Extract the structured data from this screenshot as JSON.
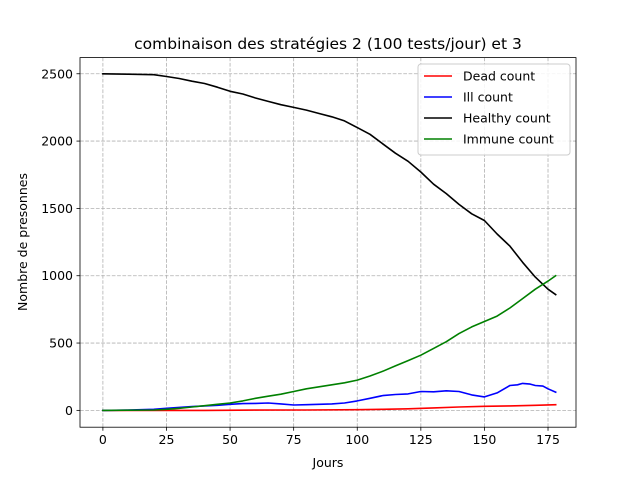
{
  "chart_data": {
    "type": "line",
    "title": "combinaison des stratégies 2 (100 tests/jour) et 3",
    "xlabel": "Jours",
    "ylabel": "Nombre de presonnes",
    "xlim": [
      -9,
      186
    ],
    "ylim": [
      -125,
      2620
    ],
    "xticks": [
      0,
      25,
      50,
      75,
      100,
      125,
      150,
      175
    ],
    "yticks": [
      0,
      500,
      1000,
      1500,
      2000,
      2500
    ],
    "xtick_labels": [
      "0",
      "25",
      "50",
      "75",
      "100",
      "125",
      "150",
      "175"
    ],
    "ytick_labels": [
      "0",
      "500",
      "1000",
      "1500",
      "2000",
      "2500"
    ],
    "grid": true,
    "legend_position": "top-right",
    "series": [
      {
        "name": "Dead count",
        "color": "#ff0000",
        "x": [
          0,
          20,
          40,
          60,
          80,
          100,
          110,
          120,
          130,
          140,
          150,
          160,
          170,
          178
        ],
        "y": [
          0,
          0,
          0,
          2,
          3,
          5,
          8,
          12,
          18,
          25,
          30,
          33,
          38,
          42
        ]
      },
      {
        "name": "Ill count",
        "color": "#0000ff",
        "x": [
          0,
          10,
          20,
          25,
          30,
          35,
          40,
          45,
          50,
          55,
          60,
          65,
          70,
          75,
          80,
          85,
          90,
          95,
          100,
          105,
          110,
          115,
          120,
          125,
          130,
          135,
          140,
          145,
          150,
          155,
          160,
          163,
          165,
          168,
          170,
          173,
          175,
          178
        ],
        "y": [
          0,
          2,
          8,
          15,
          22,
          28,
          33,
          38,
          45,
          50,
          52,
          55,
          48,
          40,
          42,
          45,
          48,
          55,
          70,
          90,
          110,
          118,
          122,
          140,
          138,
          145,
          140,
          115,
          100,
          130,
          185,
          190,
          200,
          195,
          185,
          180,
          160,
          135
        ]
      },
      {
        "name": "Healthy count",
        "color": "#000000",
        "x": [
          0,
          10,
          20,
          25,
          30,
          35,
          40,
          45,
          50,
          55,
          60,
          65,
          70,
          75,
          80,
          85,
          90,
          95,
          100,
          105,
          110,
          115,
          120,
          125,
          130,
          135,
          140,
          145,
          150,
          155,
          160,
          165,
          170,
          175,
          178
        ],
        "y": [
          2500,
          2497,
          2493,
          2480,
          2465,
          2445,
          2428,
          2400,
          2370,
          2350,
          2320,
          2295,
          2270,
          2250,
          2230,
          2205,
          2180,
          2150,
          2100,
          2050,
          1980,
          1910,
          1850,
          1770,
          1680,
          1610,
          1530,
          1460,
          1410,
          1310,
          1220,
          1100,
          990,
          900,
          860
        ]
      },
      {
        "name": "Immune count",
        "color": "#008000",
        "x": [
          0,
          10,
          20,
          25,
          30,
          35,
          40,
          45,
          50,
          55,
          60,
          65,
          70,
          75,
          80,
          85,
          90,
          95,
          100,
          105,
          110,
          115,
          120,
          125,
          130,
          135,
          140,
          145,
          150,
          155,
          160,
          165,
          170,
          175,
          178
        ],
        "y": [
          0,
          1,
          3,
          8,
          15,
          25,
          35,
          45,
          55,
          70,
          90,
          105,
          120,
          140,
          160,
          175,
          190,
          205,
          225,
          255,
          290,
          330,
          370,
          410,
          460,
          510,
          570,
          620,
          660,
          700,
          760,
          830,
          900,
          960,
          1000
        ]
      }
    ]
  }
}
